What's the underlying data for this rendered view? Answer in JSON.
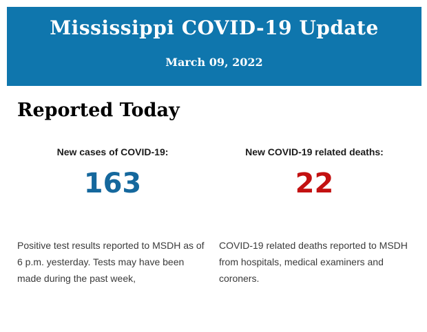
{
  "banner": {
    "title": "Mississippi COVID-19 Update",
    "date": "March 09, 2022",
    "background_color": "#0f76ad"
  },
  "section": {
    "heading": "Reported Today"
  },
  "stats": [
    {
      "label": "New cases of COVID-19:",
      "value": "163",
      "value_color": "#15689d",
      "description": "Positive test results reported to MSDH as of 6 p.m. yesterday. Tests may have been made during the past week,"
    },
    {
      "label": "New COVID-19 related deaths:",
      "value": "22",
      "value_color": "#c31111",
      "description": "COVID-19 related deaths reported to MSDH from hospitals, medical examiners and coroners."
    }
  ]
}
